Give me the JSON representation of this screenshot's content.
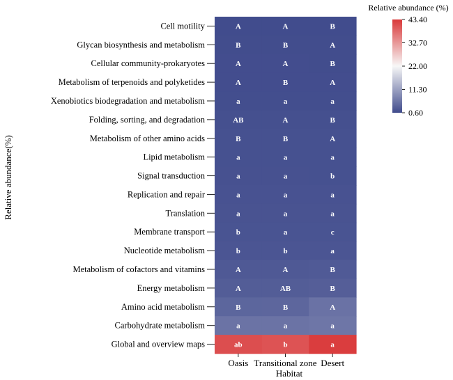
{
  "chart_data": {
    "type": "heatmap",
    "xlabel": "Habitat",
    "ylabel": "Relative abundance(%)",
    "legend_title": "Relative abundance (%)",
    "legend_ticks": [
      "43.40",
      "32.70",
      "22.00",
      "11.30",
      "0.60"
    ],
    "color_range": [
      0.6,
      43.4
    ],
    "color_low": "#404b8c",
    "color_mid": "#f7f7f7",
    "color_high": "#d9393a",
    "columns": [
      "Oasis",
      "Transitional zone",
      "Desert"
    ],
    "rows": [
      "Cell motility",
      "Glycan biosynthesis and metabolism",
      "Cellular community-prokaryotes",
      "Metabolism of terpenoids and polyketides",
      "Xenobiotics biodegradation and metabolism",
      "Folding, sorting, and degradation",
      "Metabolism of other amino acids",
      "Lipid metabolism",
      "Signal transduction",
      "Replication and repair",
      "Translation",
      "Membrane transport",
      "Nucleotide metabolism",
      "Metabolism of cofactors and vitamins",
      "Energy metabolism",
      "Amino acid metabolism",
      "Carbohydrate metabolism",
      "Global and overview maps"
    ],
    "values": [
      [
        0.7,
        0.7,
        0.7
      ],
      [
        0.8,
        0.8,
        0.8
      ],
      [
        0.9,
        0.9,
        0.8
      ],
      [
        0.9,
        0.9,
        0.9
      ],
      [
        1.0,
        1.0,
        1.0
      ],
      [
        1.2,
        1.2,
        1.2
      ],
      [
        1.3,
        1.3,
        1.3
      ],
      [
        1.3,
        1.3,
        1.3
      ],
      [
        1.4,
        1.4,
        1.3
      ],
      [
        1.5,
        1.5,
        1.5
      ],
      [
        1.6,
        1.6,
        1.6
      ],
      [
        1.7,
        1.7,
        1.7
      ],
      [
        1.9,
        1.9,
        1.9
      ],
      [
        2.3,
        2.3,
        2.5
      ],
      [
        2.8,
        2.8,
        3.0
      ],
      [
        3.9,
        4.0,
        5.5
      ],
      [
        5.6,
        5.6,
        6.0
      ],
      [
        41.0,
        40.5,
        43.0
      ]
    ],
    "letters": [
      [
        "A",
        "A",
        "B"
      ],
      [
        "B",
        "B",
        "A"
      ],
      [
        "A",
        "A",
        "B"
      ],
      [
        "A",
        "B",
        "A"
      ],
      [
        "a",
        "a",
        "a"
      ],
      [
        "AB",
        "A",
        "B"
      ],
      [
        "B",
        "B",
        "A"
      ],
      [
        "a",
        "a",
        "a"
      ],
      [
        "a",
        "a",
        "b"
      ],
      [
        "a",
        "a",
        "a"
      ],
      [
        "a",
        "a",
        "a"
      ],
      [
        "b",
        "a",
        "c"
      ],
      [
        "b",
        "b",
        "a"
      ],
      [
        "A",
        "A",
        "B"
      ],
      [
        "A",
        "AB",
        "B"
      ],
      [
        "B",
        "B",
        "A"
      ],
      [
        "a",
        "a",
        "a"
      ],
      [
        "ab",
        "b",
        "a"
      ]
    ]
  }
}
